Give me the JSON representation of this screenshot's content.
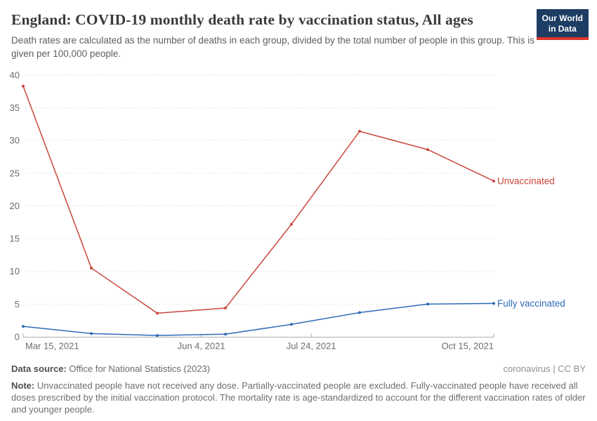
{
  "header": {
    "title": "England: COVID-19 monthly death rate by vaccination status, All ages",
    "subtitle": "Death rates are calculated as the number of deaths in each group, divided by the total number of people in this group. This is given per 100,000 people.",
    "logo": {
      "line1": "Our World",
      "line2": "in Data",
      "bg_color": "#1d3d63",
      "bar_color": "#dc352b"
    }
  },
  "chart_data": {
    "type": "line",
    "title": "England: COVID-19 monthly death rate by vaccination status, All ages",
    "subtitle": "Death rates are calculated as the number of deaths in each group, divided by the total number of people in this group. This is given per 100,000 people.",
    "grid": "dashed",
    "grid_color": "#e2e2e2",
    "axis_color": "#adadad",
    "tick_label_color": "#6c6c6c",
    "legend_position": "right-of-line-end",
    "y_axis": {
      "min": 0,
      "max": 40,
      "step": 5
    },
    "x_axis": {
      "max_day": 214,
      "ticks": [
        {
          "label": "Mar 15, 2021",
          "day": 0,
          "align": "start"
        },
        {
          "label": "Jun 4, 2021",
          "day": 81,
          "align": "middle"
        },
        {
          "label": "Jul 24, 2021",
          "day": 131,
          "align": "middle"
        },
        {
          "label": "Oct 15, 2021",
          "day": 214,
          "align": "end"
        }
      ]
    },
    "x_days": [
      0,
      31,
      61,
      92,
      122,
      153,
      184,
      214
    ],
    "series": [
      {
        "id": "unvaccinated",
        "name": "Unvaccinated",
        "color": "#c9463c",
        "values": [
          38.3,
          10.5,
          3.6,
          4.4,
          17.2,
          31.4,
          28.6,
          23.8
        ]
      },
      {
        "id": "fully-vaccinated",
        "name": "Fully vaccinated",
        "color": "#2e6bb8",
        "values": [
          1.6,
          0.5,
          0.2,
          0.4,
          1.9,
          3.7,
          5.0,
          5.1
        ]
      }
    ]
  },
  "footer": {
    "data_source_label": "Data source:",
    "data_source_value": "Office for National Statistics (2023)",
    "license": "coronavirus | CC BY",
    "note_label": "Note:",
    "note_text": "Unvaccinated people have not received any dose. Partially-vaccinated people are excluded. Fully-vaccinated people have received all doses prescribed by the initial vaccination protocol. The mortality rate is age-standardized to account for the different vaccination rates of older and younger people."
  }
}
